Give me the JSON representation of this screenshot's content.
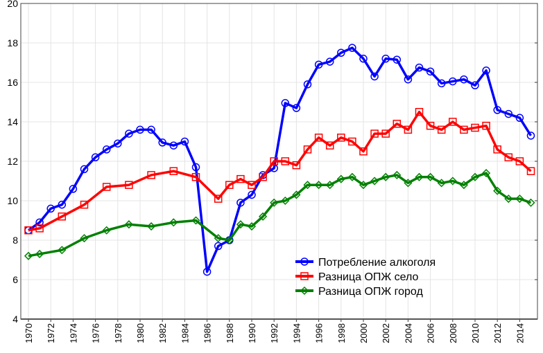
{
  "chart_data": {
    "type": "line",
    "title": "",
    "xlabel": "",
    "ylabel": "",
    "ylim": [
      4,
      20
    ],
    "xlim": [
      1969.3,
      2015.6
    ],
    "grid": true,
    "legend_position": "bottom-right",
    "yticks": [
      4,
      6,
      8,
      10,
      12,
      14,
      16,
      18,
      20
    ],
    "xticks": [
      1970,
      1972,
      1974,
      1976,
      1978,
      1980,
      1982,
      1984,
      1986,
      1988,
      1990,
      1992,
      1994,
      1996,
      1998,
      2000,
      2002,
      2004,
      2006,
      2008,
      2010,
      2012,
      2014
    ],
    "x": [
      1970,
      1971,
      1972,
      1973,
      1974,
      1975,
      1976,
      1977,
      1978,
      1979,
      1980,
      1981,
      1982,
      1983,
      1984,
      1985,
      1986,
      1987,
      1988,
      1989,
      1990,
      1991,
      1992,
      1993,
      1994,
      1995,
      1996,
      1997,
      1998,
      1999,
      2000,
      2001,
      2002,
      2003,
      2004,
      2005,
      2006,
      2007,
      2008,
      2009,
      2010,
      2011,
      2012,
      2013,
      2014,
      2015
    ],
    "series": [
      {
        "name": "Потребление алкоголя",
        "color": "#0000ff",
        "marker": "circle",
        "values": [
          8.5,
          8.9,
          9.6,
          9.8,
          10.6,
          11.6,
          12.2,
          12.6,
          12.9,
          13.4,
          13.6,
          13.6,
          12.95,
          12.8,
          13.0,
          11.7,
          6.4,
          7.7,
          8.0,
          9.9,
          10.3,
          11.3,
          11.65,
          14.95,
          14.7,
          15.9,
          16.9,
          17.05,
          17.5,
          17.75,
          17.2,
          16.3,
          17.2,
          17.15,
          16.15,
          16.75,
          16.55,
          15.95,
          16.05,
          16.15,
          15.85,
          16.6,
          14.6,
          14.4,
          14.2,
          13.3
        ]
      },
      {
        "name": "Разница ОПЖ село",
        "color": "#ff0000",
        "marker": "square",
        "values": [
          8.5,
          8.6,
          null,
          9.2,
          null,
          9.8,
          null,
          10.7,
          null,
          10.8,
          null,
          11.3,
          null,
          11.5,
          null,
          11.2,
          null,
          10.1,
          10.8,
          11.1,
          10.8,
          11.2,
          12.0,
          12.0,
          11.8,
          12.6,
          13.2,
          12.8,
          13.2,
          13.0,
          12.5,
          13.4,
          13.4,
          13.9,
          13.6,
          14.5,
          13.8,
          13.6,
          14.0,
          13.6,
          13.7,
          13.8,
          12.6,
          12.2,
          12.0,
          11.5
        ]
      },
      {
        "name": "Разница ОПЖ город",
        "color": "#008000",
        "marker": "diamond",
        "values": [
          7.2,
          7.3,
          null,
          7.5,
          null,
          8.1,
          null,
          8.5,
          null,
          8.8,
          null,
          8.7,
          null,
          8.9,
          null,
          9.0,
          null,
          8.1,
          8.0,
          8.8,
          8.7,
          9.2,
          9.9,
          10.0,
          10.3,
          10.8,
          10.8,
          10.8,
          11.1,
          11.2,
          10.8,
          11.0,
          11.2,
          11.3,
          10.9,
          11.2,
          11.2,
          10.9,
          11.0,
          10.8,
          11.2,
          11.4,
          10.5,
          10.1,
          10.1,
          9.9
        ]
      }
    ]
  }
}
